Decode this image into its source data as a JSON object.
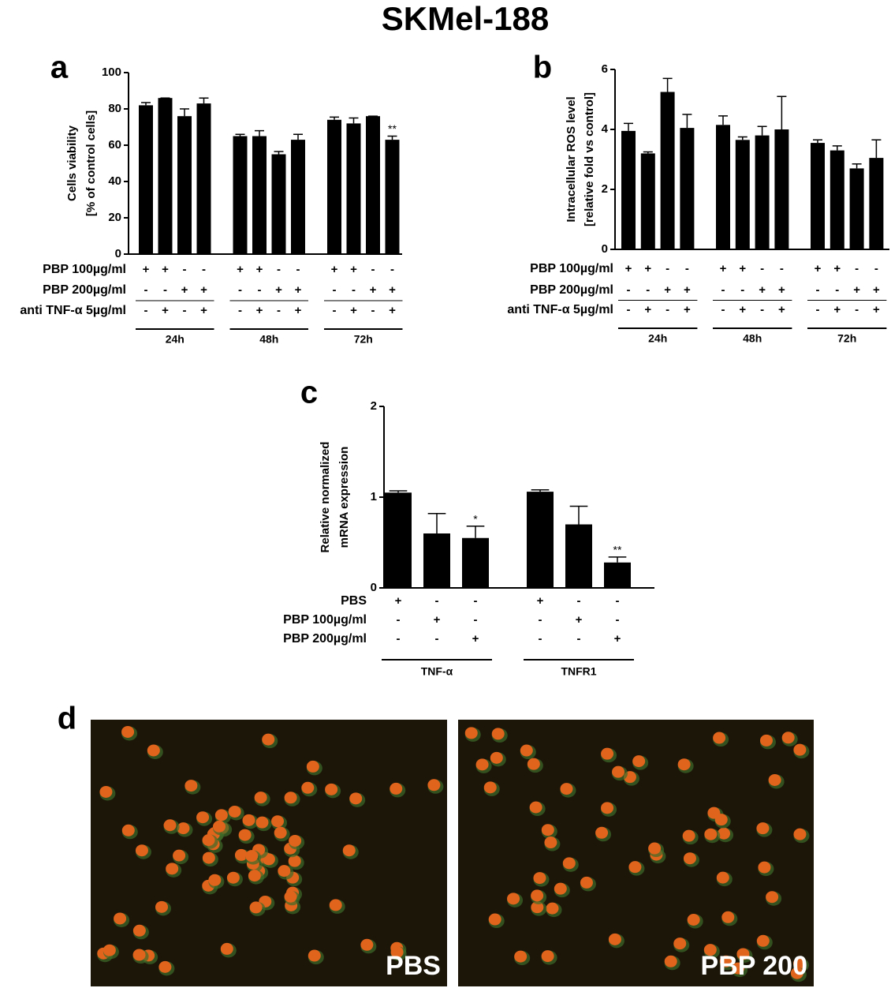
{
  "title": "SKMel-188",
  "chart_data": [
    {
      "type": "bar",
      "panel_label": "a",
      "ylabel": [
        "Cells viability",
        "[% of control cells]"
      ],
      "ylim": [
        0,
        100
      ],
      "yticks": [
        0,
        20,
        40,
        60,
        80,
        100
      ],
      "series": [
        {
          "color": "#000000",
          "values": [
            82,
            86,
            76,
            83,
            65,
            65,
            55,
            63,
            74,
            72,
            76,
            63
          ],
          "errors": [
            1.5,
            0,
            4,
            3,
            1,
            3,
            1.5,
            3,
            1.5,
            3,
            0,
            2
          ]
        }
      ],
      "annotations": [
        {
          "index": 11,
          "text": "**"
        }
      ],
      "conditions": [
        {
          "label": "PBP 100µg/ml",
          "signs": [
            "+",
            "+",
            "-",
            "-",
            "+",
            "+",
            "-",
            "-",
            "+",
            "+",
            "-",
            "-"
          ]
        },
        {
          "label": "PBP 200µg/ml",
          "signs": [
            "-",
            "-",
            "+",
            "+",
            "-",
            "-",
            "+",
            "+",
            "-",
            "-",
            "+",
            "+"
          ]
        },
        {
          "label": "anti TNF-α 5µg/ml",
          "signs": [
            "-",
            "+",
            "-",
            "+",
            "-",
            "+",
            "-",
            "+",
            "-",
            "+",
            "-",
            "+"
          ]
        }
      ],
      "groups": [
        "24h",
        "48h",
        "72h"
      ]
    },
    {
      "type": "bar",
      "panel_label": "b",
      "ylabel": [
        "Intracellular ROS level",
        "[relative fold vs control]"
      ],
      "ylim": [
        0,
        6
      ],
      "yticks": [
        0,
        2,
        4,
        6
      ],
      "series": [
        {
          "color": "#000000",
          "values": [
            3.95,
            3.2,
            5.25,
            4.05,
            4.15,
            3.65,
            3.8,
            4.0,
            3.55,
            3.3,
            2.7,
            3.05
          ],
          "errors": [
            0.25,
            0.05,
            0.45,
            0.45,
            0.3,
            0.1,
            0.3,
            1.1,
            0.1,
            0.15,
            0.15,
            0.6
          ]
        }
      ],
      "annotations": [],
      "conditions": [
        {
          "label": "PBP 100µg/ml",
          "signs": [
            "+",
            "+",
            "-",
            "-",
            "+",
            "+",
            "-",
            "-",
            "+",
            "+",
            "-",
            "-"
          ]
        },
        {
          "label": "PBP 200µg/ml",
          "signs": [
            "-",
            "-",
            "+",
            "+",
            "-",
            "-",
            "+",
            "+",
            "-",
            "-",
            "+",
            "+"
          ]
        },
        {
          "label": "anti TNF-α 5µg/ml",
          "signs": [
            "-",
            "+",
            "-",
            "+",
            "-",
            "+",
            "-",
            "+",
            "-",
            "+",
            "-",
            "+"
          ]
        }
      ],
      "groups": [
        "24h",
        "48h",
        "72h"
      ]
    },
    {
      "type": "bar",
      "panel_label": "c",
      "ylabel": [
        "Relative normalized",
        "mRNA expression"
      ],
      "ylim": [
        0,
        2
      ],
      "yticks": [
        0,
        1,
        2
      ],
      "series": [
        {
          "color": "#000000",
          "values": [
            1.05,
            0.6,
            0.55,
            1.06,
            0.7,
            0.28
          ],
          "errors": [
            0.02,
            0.22,
            0.13,
            0.02,
            0.2,
            0.06
          ]
        }
      ],
      "annotations": [
        {
          "index": 2,
          "text": "*"
        },
        {
          "index": 5,
          "text": "**"
        }
      ],
      "conditions": [
        {
          "label": "PBS",
          "signs": [
            "+",
            "-",
            "-",
            "+",
            "-",
            "-"
          ]
        },
        {
          "label": "PBP 100µg/ml",
          "signs": [
            "-",
            "+",
            "-",
            "-",
            "+",
            "-"
          ]
        },
        {
          "label": "PBP 200µg/ml",
          "signs": [
            "-",
            "-",
            "+",
            "-",
            "-",
            "+"
          ]
        }
      ],
      "groups": [
        "TNF-α",
        "TNFR1"
      ]
    }
  ],
  "images": {
    "panel_label": "d",
    "panels": [
      "PBS",
      "PBP 200"
    ]
  }
}
